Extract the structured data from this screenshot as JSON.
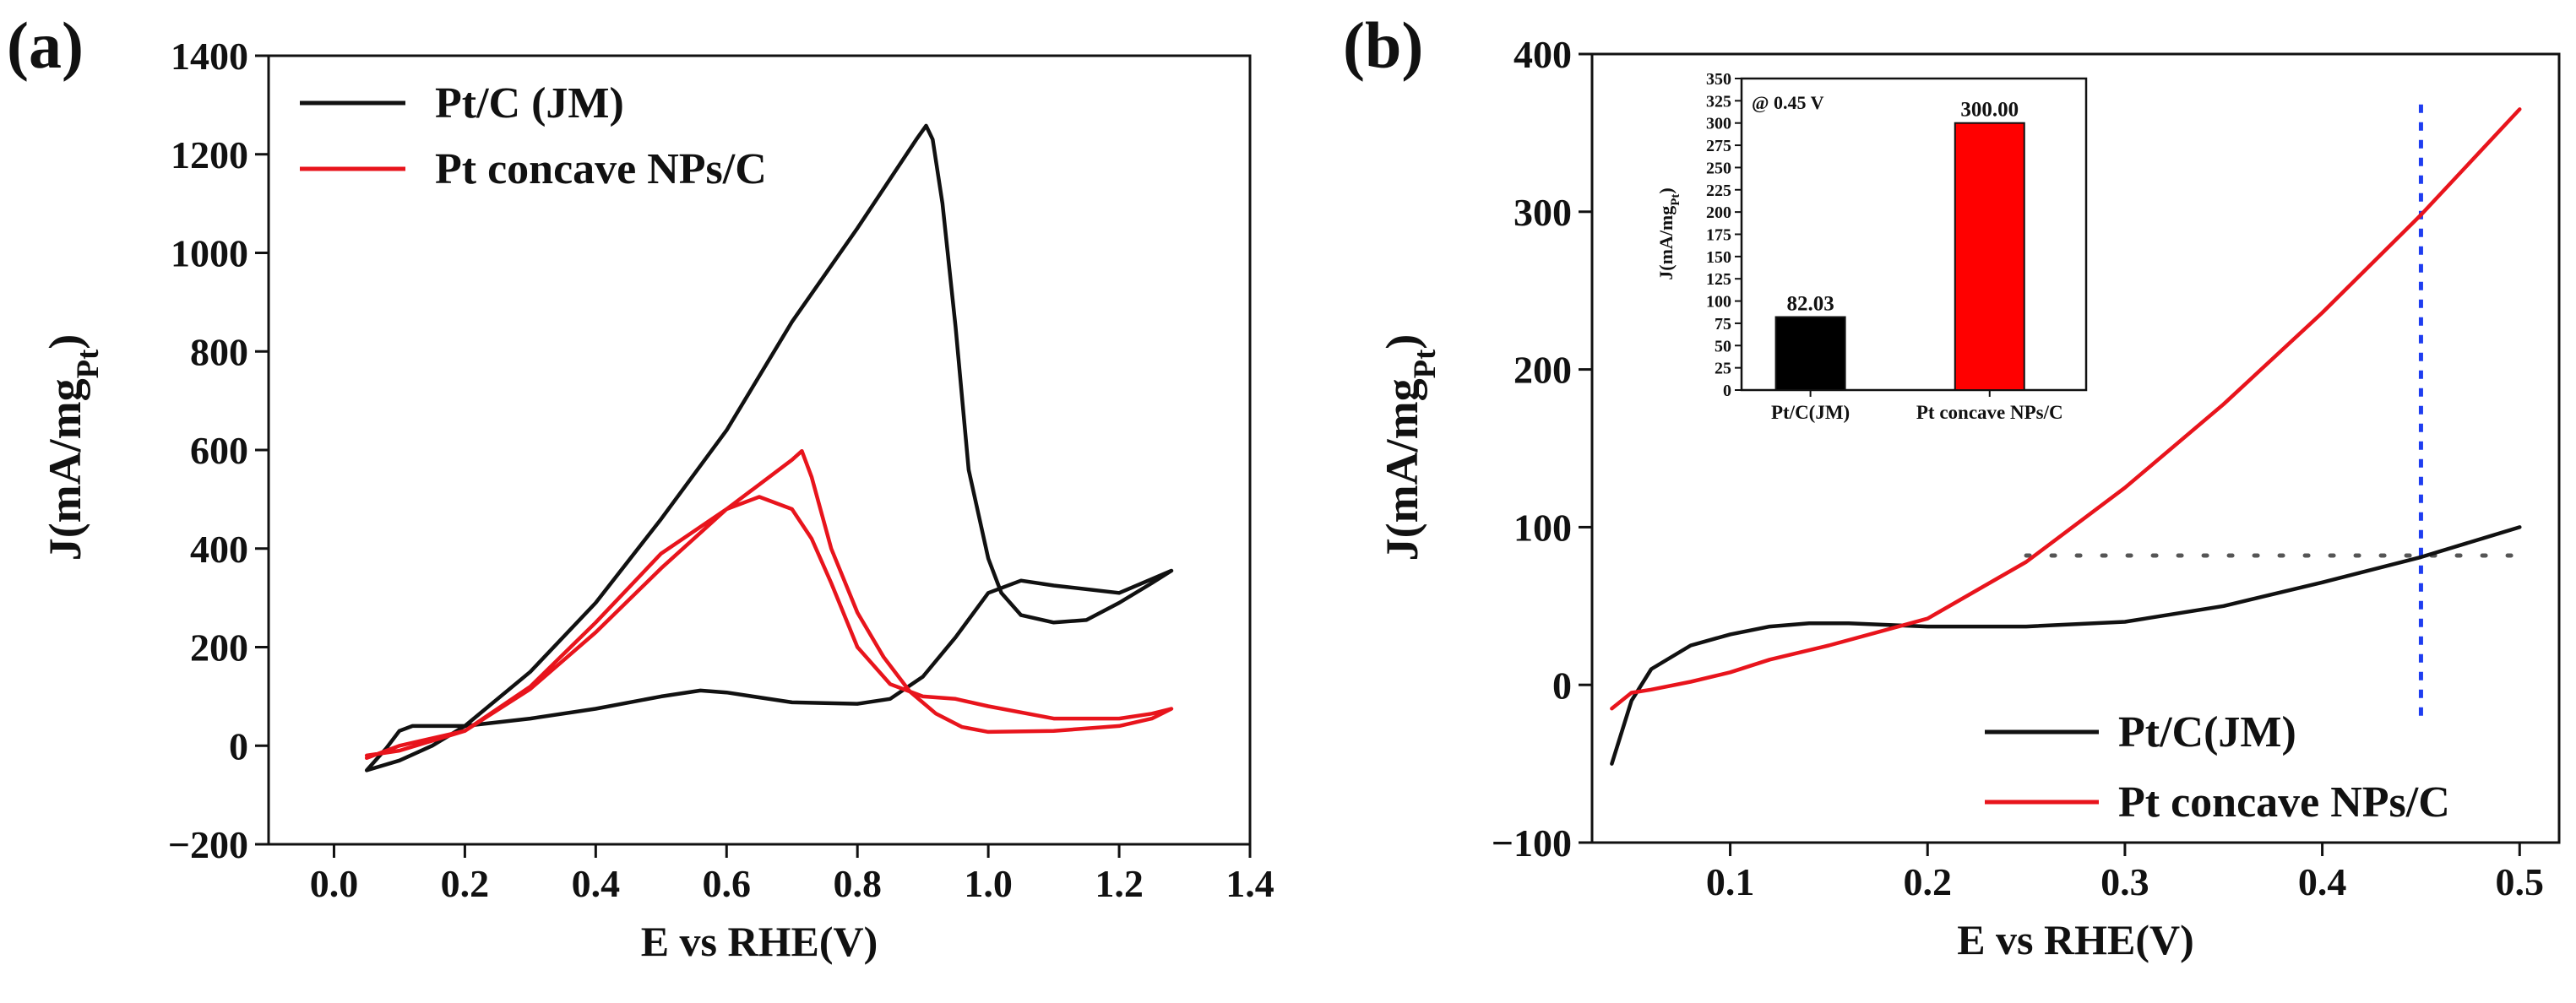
{
  "figure": {
    "panel_a_label": "(a)",
    "panel_b_label": "(b)"
  },
  "chart_data": [
    {
      "id": "a",
      "type": "line",
      "xlabel": "E vs RHE(V)",
      "ylabel": "J(mA/mg",
      "ylabel_sub": "Pt",
      "ylabel_close": ")",
      "xlim": [
        -0.1,
        1.4
      ],
      "ylim": [
        -200,
        1400
      ],
      "xticks": [
        0.0,
        0.2,
        0.4,
        0.6,
        0.8,
        1.0,
        1.2,
        1.4
      ],
      "xtick_labels": [
        "0.0",
        "0.2",
        "0.4",
        "0.6",
        "0.8",
        "1.0",
        "1.2",
        "1.4"
      ],
      "yticks": [
        -200,
        0,
        200,
        400,
        600,
        800,
        1000,
        1200,
        1400
      ],
      "ytick_labels": [
        "−200",
        "0",
        "200",
        "400",
        "600",
        "800",
        "1000",
        "1200",
        "1400"
      ],
      "legend": [
        "Pt/C (JM)",
        "Pt concave NPs/C"
      ],
      "series": [
        {
          "name": "Pt/C (JM)",
          "color": "#111111",
          "points": [
            [
              0.05,
              -50
            ],
            [
              0.08,
              -5
            ],
            [
              0.1,
              30
            ],
            [
              0.12,
              40
            ],
            [
              0.2,
              40
            ],
            [
              0.3,
              55
            ],
            [
              0.4,
              75
            ],
            [
              0.5,
              100
            ],
            [
              0.56,
              112
            ],
            [
              0.6,
              108
            ],
            [
              0.7,
              88
            ],
            [
              0.8,
              85
            ],
            [
              0.85,
              95
            ],
            [
              0.9,
              140
            ],
            [
              0.95,
              220
            ],
            [
              1.0,
              310
            ],
            [
              1.05,
              335
            ],
            [
              1.1,
              325
            ],
            [
              1.2,
              310
            ],
            [
              1.28,
              355
            ],
            [
              1.25,
              330
            ],
            [
              1.2,
              290
            ],
            [
              1.15,
              255
            ],
            [
              1.1,
              250
            ],
            [
              1.05,
              265
            ],
            [
              1.02,
              310
            ],
            [
              1.0,
              380
            ],
            [
              0.97,
              560
            ],
            [
              0.95,
              850
            ],
            [
              0.93,
              1100
            ],
            [
              0.915,
              1230
            ],
            [
              0.905,
              1258
            ],
            [
              0.89,
              1230
            ],
            [
              0.8,
              1050
            ],
            [
              0.7,
              860
            ],
            [
              0.6,
              640
            ],
            [
              0.5,
              460
            ],
            [
              0.4,
              290
            ],
            [
              0.3,
              150
            ],
            [
              0.2,
              40
            ],
            [
              0.15,
              0
            ],
            [
              0.1,
              -30
            ],
            [
              0.05,
              -50
            ]
          ]
        },
        {
          "name": "Pt concave NPs/C",
          "color": "#e8141c",
          "points": [
            [
              0.05,
              -25
            ],
            [
              0.1,
              0
            ],
            [
              0.2,
              30
            ],
            [
              0.3,
              120
            ],
            [
              0.4,
              250
            ],
            [
              0.5,
              390
            ],
            [
              0.6,
              480
            ],
            [
              0.65,
              505
            ],
            [
              0.7,
              480
            ],
            [
              0.73,
              420
            ],
            [
              0.76,
              330
            ],
            [
              0.8,
              200
            ],
            [
              0.85,
              125
            ],
            [
              0.9,
              100
            ],
            [
              0.95,
              95
            ],
            [
              1.0,
              80
            ],
            [
              1.1,
              55
            ],
            [
              1.2,
              55
            ],
            [
              1.25,
              65
            ],
            [
              1.28,
              75
            ],
            [
              1.25,
              55
            ],
            [
              1.2,
              40
            ],
            [
              1.1,
              30
            ],
            [
              1.0,
              28
            ],
            [
              0.96,
              38
            ],
            [
              0.92,
              65
            ],
            [
              0.88,
              110
            ],
            [
              0.84,
              180
            ],
            [
              0.8,
              270
            ],
            [
              0.76,
              400
            ],
            [
              0.73,
              545
            ],
            [
              0.715,
              598
            ],
            [
              0.7,
              580
            ],
            [
              0.6,
              480
            ],
            [
              0.5,
              360
            ],
            [
              0.4,
              230
            ],
            [
              0.3,
              115
            ],
            [
              0.2,
              30
            ],
            [
              0.1,
              -10
            ],
            [
              0.05,
              -20
            ]
          ]
        }
      ]
    },
    {
      "id": "b",
      "type": "line",
      "xlabel": "E vs RHE(V)",
      "ylabel": "J(mA/mg",
      "ylabel_sub": "Pt",
      "ylabel_close": ")",
      "xlim": [
        0.03,
        0.52
      ],
      "ylim": [
        -100,
        400
      ],
      "xticks": [
        0.1,
        0.2,
        0.3,
        0.4,
        0.5
      ],
      "xtick_labels": [
        "0.1",
        "0.2",
        "0.3",
        "0.4",
        "0.5"
      ],
      "yticks": [
        -100,
        0,
        100,
        200,
        300,
        400
      ],
      "ytick_labels": [
        "−100",
        "0",
        "100",
        "200",
        "300",
        "400"
      ],
      "legend": [
        "Pt/C(JM)",
        "Pt concave NPs/C"
      ],
      "reference_lines": {
        "vertical_x": 0.45,
        "horizontal_y": 82,
        "horizontal_x_start": 0.25
      },
      "series": [
        {
          "name": "Pt/C(JM)",
          "color": "#111111",
          "points": [
            [
              0.04,
              -50
            ],
            [
              0.05,
              -10
            ],
            [
              0.06,
              10
            ],
            [
              0.08,
              25
            ],
            [
              0.1,
              32
            ],
            [
              0.12,
              37
            ],
            [
              0.14,
              39
            ],
            [
              0.16,
              39
            ],
            [
              0.2,
              37
            ],
            [
              0.25,
              37
            ],
            [
              0.3,
              40
            ],
            [
              0.35,
              50
            ],
            [
              0.4,
              65
            ],
            [
              0.45,
              81
            ],
            [
              0.5,
              100
            ]
          ]
        },
        {
          "name": "Pt concave NPs/C",
          "color": "#e8141c",
          "points": [
            [
              0.04,
              -15
            ],
            [
              0.05,
              -5
            ],
            [
              0.06,
              -3
            ],
            [
              0.08,
              2
            ],
            [
              0.1,
              8
            ],
            [
              0.12,
              16
            ],
            [
              0.15,
              25
            ],
            [
              0.2,
              42
            ],
            [
              0.25,
              78
            ],
            [
              0.3,
              125
            ],
            [
              0.35,
              178
            ],
            [
              0.4,
              236
            ],
            [
              0.45,
              298
            ],
            [
              0.5,
              365
            ]
          ]
        }
      ],
      "inset": {
        "type": "bar",
        "annotation": "@ 0.45 V",
        "ylabel": "J(mA/mg",
        "ylabel_sub": "Pt",
        "ylabel_close": ")",
        "ylim": [
          0,
          350
        ],
        "yticks": [
          0,
          25,
          50,
          75,
          100,
          125,
          150,
          175,
          200,
          225,
          250,
          275,
          300,
          325,
          350
        ],
        "ytick_labels": [
          "0",
          "25",
          "50",
          "75",
          "100",
          "125",
          "150",
          "175",
          "200",
          "225",
          "250",
          "275",
          "300",
          "325",
          "350"
        ],
        "categories": [
          "Pt/C(JM)",
          "Pt concave NPs/C"
        ],
        "values": [
          82.03,
          300.0
        ],
        "value_labels": [
          "82.03",
          "300.00"
        ],
        "colors": [
          "#000000",
          "#ff0000"
        ]
      }
    }
  ]
}
